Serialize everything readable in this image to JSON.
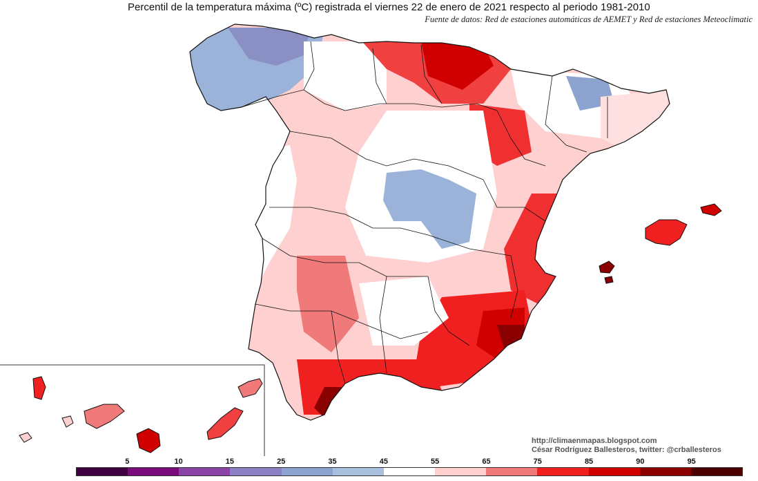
{
  "title": "Percentil de la temperatura máxima (ºC) registrada el viernes 22 de enero de 2021 respecto al periodo 1981-2010",
  "subtitle": "Fuente de datos: Red de estaciones automáticas de AEMET y Red de estaciones Meteoclimatic",
  "credits": {
    "blog": "http://climaenmapas.blogspot.com",
    "author": "César Rodríguez Ballesteros, twitter: @crballesteros"
  },
  "legend": {
    "labels": [
      "5",
      "10",
      "15",
      "25",
      "35",
      "45",
      "55",
      "65",
      "75",
      "85",
      "90",
      "95"
    ],
    "colors": [
      "#3f0040",
      "#7a0b7a",
      "#8a44a8",
      "#8b80c4",
      "#8da3cf",
      "#a9c0dd",
      "#ffffff",
      "#ffd0d0",
      "#f07a7a",
      "#f02020",
      "#d00000",
      "#8a0000",
      "#4a0000"
    ]
  },
  "colors": {
    "border": "#111111",
    "background": "#ffffff"
  }
}
